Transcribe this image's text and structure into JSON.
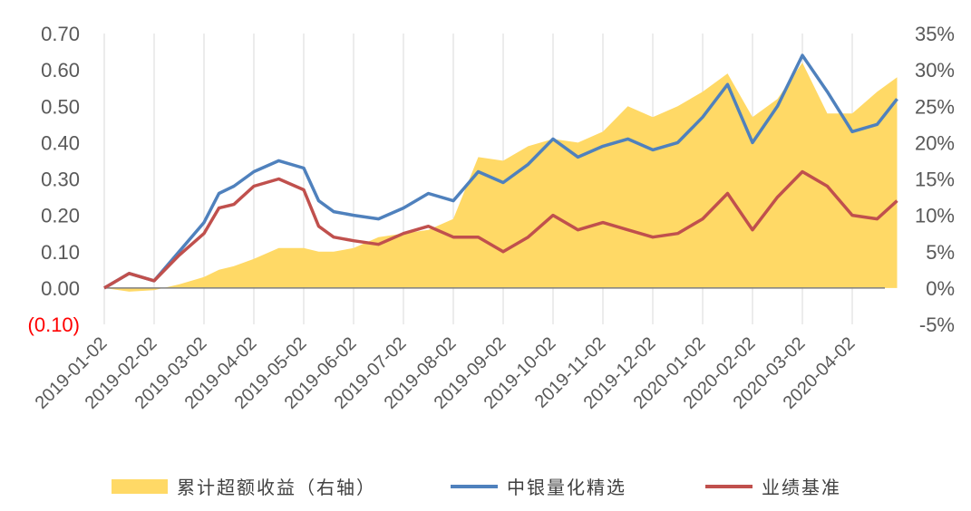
{
  "chart_data": {
    "type": "line",
    "y_left": {
      "ticks": [
        "0.70",
        "0.60",
        "0.50",
        "0.40",
        "0.30",
        "0.20",
        "0.10",
        "0.00",
        "(0.10)"
      ],
      "ylim": [
        -0.1,
        0.7
      ]
    },
    "y_right": {
      "ticks": [
        "35%",
        "30%",
        "25%",
        "20%",
        "15%",
        "10%",
        "5%",
        "0%",
        "-5%"
      ],
      "ylim": [
        -5,
        35
      ]
    },
    "x_ticks": [
      "2019-01-02",
      "2019-02-02",
      "2019-03-02",
      "2019-04-02",
      "2019-05-02",
      "2019-06-02",
      "2019-07-02",
      "2019-08-02",
      "2019-09-02",
      "2019-10-02",
      "2019-11-02",
      "2019-12-02",
      "2020-01-02",
      "2020-02-02",
      "2020-03-02",
      "2020-04-02"
    ],
    "grid": "vertical",
    "legend_position": "bottom",
    "colors": {
      "area": "#ffd966",
      "series1": "#4f81bd",
      "series2": "#c0504d"
    },
    "t": [
      0,
      0.5,
      1,
      1.5,
      2,
      2.3,
      2.6,
      3,
      3.5,
      4,
      4.3,
      4.6,
      5,
      5.5,
      6,
      6.5,
      7,
      7.5,
      8,
      8.5,
      9,
      9.5,
      10,
      10.5,
      11,
      11.5,
      12,
      12.5,
      13,
      13.5,
      14,
      14.5,
      15,
      15.5,
      15.9
    ],
    "series": [
      {
        "name": "中银量化精选",
        "axis": "left",
        "values": [
          0.0,
          0.04,
          0.02,
          0.1,
          0.18,
          0.26,
          0.28,
          0.32,
          0.35,
          0.33,
          0.24,
          0.21,
          0.2,
          0.19,
          0.22,
          0.26,
          0.24,
          0.32,
          0.29,
          0.34,
          0.41,
          0.36,
          0.39,
          0.41,
          0.38,
          0.4,
          0.47,
          0.56,
          0.4,
          0.5,
          0.64,
          0.54,
          0.43,
          0.45,
          0.52
        ]
      },
      {
        "name": "业绩基准",
        "axis": "left",
        "values": [
          0.0,
          0.04,
          0.02,
          0.09,
          0.15,
          0.22,
          0.23,
          0.28,
          0.3,
          0.27,
          0.17,
          0.14,
          0.13,
          0.12,
          0.15,
          0.17,
          0.14,
          0.14,
          0.1,
          0.14,
          0.2,
          0.16,
          0.18,
          0.16,
          0.14,
          0.15,
          0.19,
          0.26,
          0.16,
          0.25,
          0.32,
          0.28,
          0.2,
          0.19,
          0.24
        ]
      },
      {
        "name": "累计超额收益（右轴）",
        "axis": "right",
        "values": [
          0.0,
          -0.5,
          -0.3,
          0.5,
          1.5,
          2.5,
          3.0,
          4.0,
          5.5,
          5.5,
          5.0,
          5.0,
          5.5,
          7.0,
          7.5,
          8.0,
          9.5,
          18.0,
          17.5,
          19.5,
          20.5,
          20.0,
          21.5,
          25.0,
          23.5,
          25.0,
          27.0,
          29.5,
          23.5,
          26.0,
          31.0,
          24.0,
          24.0,
          27.0,
          29.0
        ]
      }
    ]
  }
}
